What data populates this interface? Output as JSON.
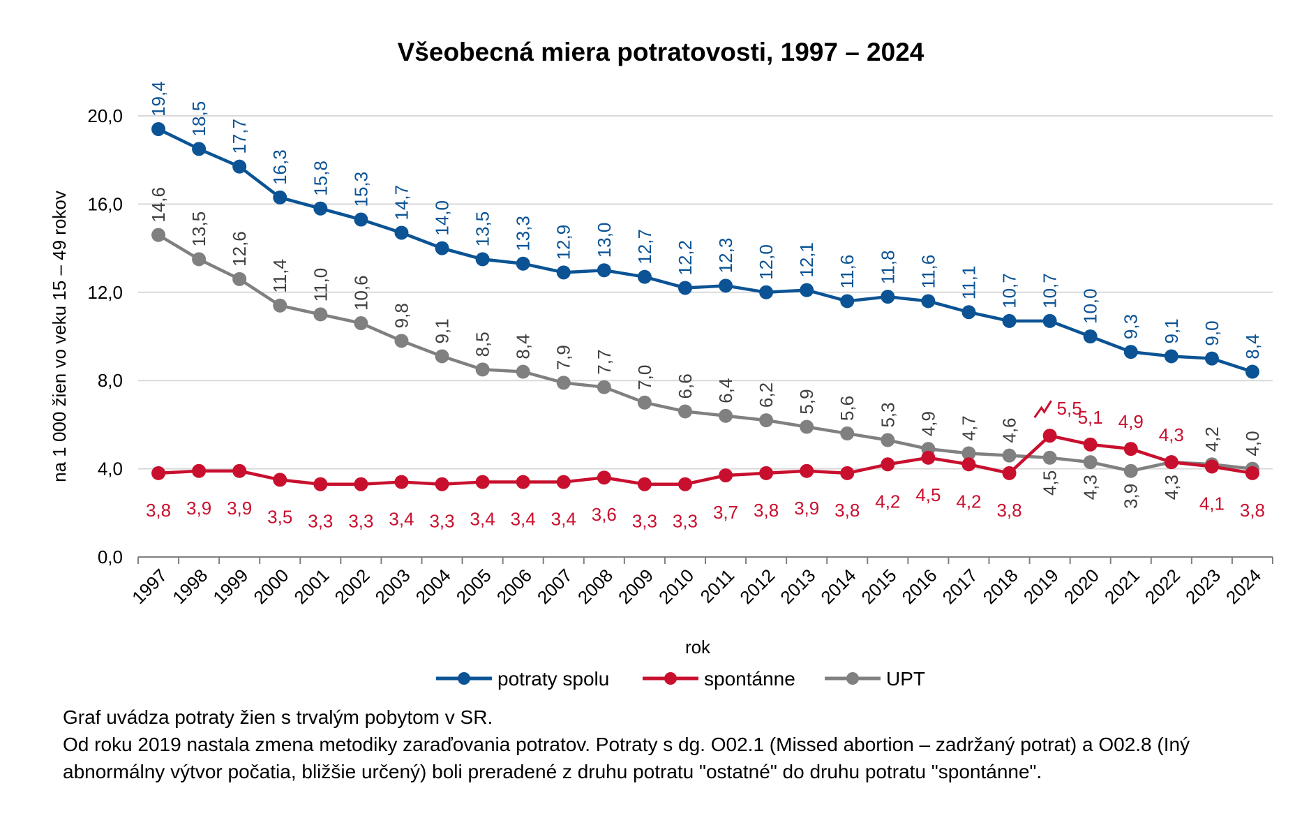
{
  "chart_data": {
    "type": "line",
    "title": "Všeobecná miera potratovosti, 1997 – 2024",
    "xlabel": "rok",
    "ylabel": "na 1 000 žien vo veku 15 – 49 rokov",
    "ylim": [
      0,
      20
    ],
    "yticks": [
      0,
      4,
      8,
      12,
      16,
      20
    ],
    "ytick_labels": [
      "0,0",
      "4,0",
      "8,0",
      "12,0",
      "16,0",
      "20,0"
    ],
    "grid": true,
    "legend_position": "bottom-center",
    "categories": [
      "1997",
      "1998",
      "1999",
      "2000",
      "2001",
      "2002",
      "2003",
      "2004",
      "2005",
      "2006",
      "2007",
      "2008",
      "2009",
      "2010",
      "2011",
      "2012",
      "2013",
      "2014",
      "2015",
      "2016",
      "2017",
      "2018",
      "2019",
      "2020",
      "2021",
      "2022",
      "2023",
      "2024"
    ],
    "series": [
      {
        "name": "potraty spolu",
        "color": "#0B5394",
        "values": [
          19.4,
          18.5,
          17.7,
          16.3,
          15.8,
          15.3,
          14.7,
          14.0,
          13.5,
          13.3,
          12.9,
          13.0,
          12.7,
          12.2,
          12.3,
          12.0,
          12.1,
          11.6,
          11.8,
          11.6,
          11.1,
          10.7,
          10.7,
          10.0,
          9.3,
          9.1,
          9.0,
          8.4
        ],
        "labels": [
          "19,4",
          "18,5",
          "17,7",
          "16,3",
          "15,8",
          "15,3",
          "14,7",
          "14,0",
          "13,5",
          "13,3",
          "12,9",
          "13,0",
          "12,7",
          "12,2",
          "12,3",
          "12,0",
          "12,1",
          "11,6",
          "11,8",
          "11,6",
          "11,1",
          "10,7",
          "10,7",
          "10,0",
          "9,3",
          "9,1",
          "9,0",
          "8,4"
        ]
      },
      {
        "name": "spontánne",
        "color": "#C8102E",
        "values": [
          3.8,
          3.9,
          3.9,
          3.5,
          3.3,
          3.3,
          3.4,
          3.3,
          3.4,
          3.4,
          3.4,
          3.6,
          3.3,
          3.3,
          3.7,
          3.8,
          3.9,
          3.8,
          4.2,
          4.5,
          4.2,
          3.8,
          5.5,
          5.1,
          4.9,
          4.3,
          4.1,
          3.8
        ],
        "labels": [
          "3,8",
          "3,9",
          "3,9",
          "3,5",
          "3,3",
          "3,3",
          "3,4",
          "3,3",
          "3,4",
          "3,4",
          "3,4",
          "3,6",
          "3,3",
          "3,3",
          "3,7",
          "3,8",
          "3,9",
          "3,8",
          "4,2",
          "4,5",
          "4,2",
          "3,8",
          "5,5",
          "5,1",
          "4,9",
          "4,3",
          "4,1",
          "3,8"
        ]
      },
      {
        "name": "UPT",
        "color": "#808080",
        "values": [
          14.6,
          13.5,
          12.6,
          11.4,
          11.0,
          10.6,
          9.8,
          9.1,
          8.5,
          8.4,
          7.9,
          7.7,
          7.0,
          6.6,
          6.4,
          6.2,
          5.9,
          5.6,
          5.3,
          4.9,
          4.7,
          4.6,
          4.5,
          4.3,
          3.9,
          4.3,
          4.2,
          4.0
        ],
        "labels": [
          "14,6",
          "13,5",
          "12,6",
          "11,4",
          "11,0",
          "10,6",
          "9,8",
          "9,1",
          "8,5",
          "8,4",
          "7,9",
          "7,7",
          "7,0",
          "6,6",
          "6,4",
          "6,2",
          "5,9",
          "5,6",
          "5,3",
          "4,9",
          "4,7",
          "4,6",
          "4,5",
          "4,3",
          "3,9",
          "4,3",
          "4,2",
          "4,0"
        ]
      }
    ],
    "annotations": [
      {
        "category": "2019",
        "series": "spontánne",
        "symbol": "break-arrow-icon",
        "meaning": "methodology change"
      }
    ]
  },
  "notes": [
    "Graf uvádza potraty žien s trvalým pobytom v SR.",
    "Od roku 2019 nastala zmena metodiky zaraďovania potratov. Potraty s dg. O02.1 (Missed abortion – zadržaný potrat) a O02.8 (Iný abnormálny výtvor počatia, bližšie určený) boli preradené z druhu potratu \"ostatné\" do druhu potratu \"spontánne\"."
  ]
}
